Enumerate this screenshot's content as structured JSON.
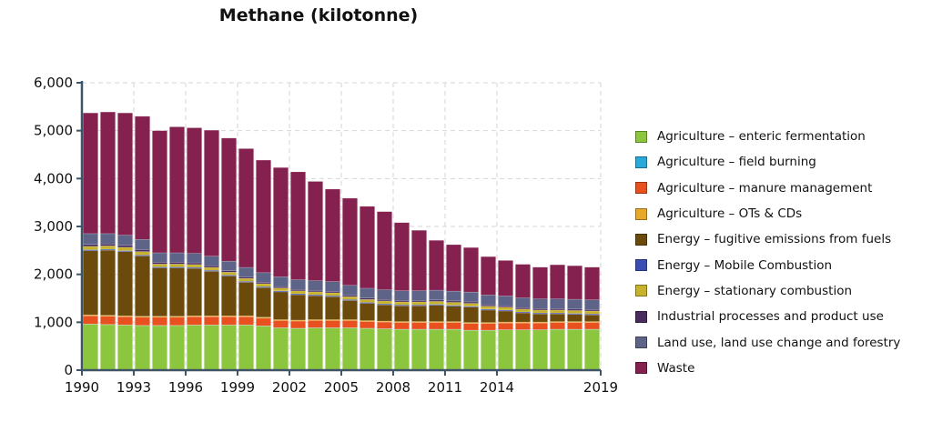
{
  "chart_data": {
    "type": "bar",
    "stacked": true,
    "title": "Methane (kilotonne)",
    "xlabel": "",
    "ylabel": "",
    "ylim": [
      0,
      6000
    ],
    "yticks": [
      "0",
      "1,000",
      "2,000",
      "3,000",
      "4,000",
      "5,000",
      "6,000"
    ],
    "xtick_labels": [
      {
        "year": "1990",
        "label": "1990"
      },
      {
        "year": "1993",
        "label": "1993"
      },
      {
        "year": "1996",
        "label": "1996"
      },
      {
        "year": "1999",
        "label": "1999"
      },
      {
        "year": "2002",
        "label": "2002"
      },
      {
        "year": "2005",
        "label": "2005"
      },
      {
        "year": "2008",
        "label": "2008"
      },
      {
        "year": "2011",
        "label": "2011"
      },
      {
        "year": "2014",
        "label": "2014"
      },
      {
        "year": "2019",
        "label": "2019"
      }
    ],
    "grid": true,
    "legend_position": "right",
    "categories": [
      "1990",
      "1991",
      "1992",
      "1993",
      "1994",
      "1995",
      "1996",
      "1997",
      "1998",
      "1999",
      "2000",
      "2001",
      "2002",
      "2003",
      "2004",
      "2005",
      "2006",
      "2007",
      "2008",
      "2009",
      "2010",
      "2011",
      "2012",
      "2013",
      "2014",
      "2015",
      "2016",
      "2017",
      "2018",
      "2019"
    ],
    "series": [
      {
        "name": "Agriculture – enteric fermentation",
        "color": "#8cc63f",
        "values": [
          960,
          950,
          940,
          930,
          930,
          930,
          940,
          940,
          940,
          940,
          920,
          880,
          870,
          880,
          880,
          880,
          870,
          860,
          850,
          850,
          850,
          850,
          830,
          830,
          840,
          840,
          840,
          850,
          850,
          850
        ]
      },
      {
        "name": "Agriculture – field burning",
        "color": "#29a9d9",
        "values": [
          5,
          5,
          5,
          5,
          5,
          5,
          5,
          5,
          5,
          5,
          5,
          5,
          5,
          5,
          5,
          5,
          5,
          5,
          5,
          5,
          5,
          5,
          5,
          5,
          5,
          5,
          5,
          5,
          5,
          5
        ]
      },
      {
        "name": "Agriculture – manure management",
        "color": "#e8501f",
        "values": [
          170,
          170,
          170,
          170,
          170,
          170,
          170,
          170,
          170,
          170,
          160,
          150,
          150,
          150,
          150,
          150,
          140,
          140,
          140,
          140,
          140,
          140,
          140,
          140,
          140,
          140,
          140,
          140,
          140,
          140
        ]
      },
      {
        "name": "Agriculture – OTs & CDs",
        "color": "#e8a92a",
        "values": [
          20,
          20,
          20,
          20,
          20,
          20,
          20,
          20,
          20,
          20,
          20,
          20,
          20,
          20,
          20,
          20,
          20,
          20,
          20,
          20,
          20,
          20,
          20,
          20,
          20,
          20,
          20,
          20,
          20,
          20
        ]
      },
      {
        "name": "Energy – fugitive emissions from fuels",
        "color": "#6b4a0c",
        "values": [
          1340,
          1360,
          1340,
          1260,
          1010,
          1010,
          990,
          930,
          830,
          700,
          620,
          580,
          530,
          500,
          480,
          400,
          360,
          340,
          330,
          330,
          340,
          320,
          320,
          260,
          230,
          190,
          170,
          160,
          150,
          140
        ]
      },
      {
        "name": "Energy – Mobile Combustion",
        "color": "#3a4db3",
        "values": [
          20,
          20,
          20,
          20,
          20,
          20,
          20,
          20,
          20,
          20,
          20,
          20,
          20,
          20,
          20,
          20,
          20,
          20,
          20,
          20,
          20,
          20,
          20,
          20,
          20,
          20,
          20,
          20,
          20,
          20
        ]
      },
      {
        "name": "Energy – stationary combustion",
        "color": "#c7b32b",
        "values": [
          70,
          70,
          70,
          70,
          60,
          60,
          60,
          60,
          60,
          60,
          60,
          60,
          60,
          60,
          60,
          60,
          60,
          60,
          60,
          60,
          60,
          60,
          60,
          60,
          60,
          60,
          60,
          60,
          60,
          60
        ]
      },
      {
        "name": "Industrial processes and product use",
        "color": "#4a2b5e",
        "values": [
          40,
          40,
          40,
          40,
          35,
          35,
          35,
          35,
          30,
          30,
          30,
          30,
          30,
          30,
          30,
          30,
          30,
          30,
          30,
          30,
          30,
          30,
          30,
          30,
          30,
          30,
          30,
          30,
          30,
          30
        ]
      },
      {
        "name": "Land use, land use change and forestry",
        "color": "#5d6488",
        "values": [
          225,
          215,
          215,
          215,
          200,
          200,
          200,
          200,
          200,
          200,
          200,
          205,
          205,
          205,
          205,
          205,
          205,
          205,
          205,
          205,
          205,
          205,
          205,
          205,
          205,
          205,
          205,
          205,
          205,
          205
        ]
      },
      {
        "name": "Waste",
        "color": "#84214f",
        "values": [
          2520,
          2540,
          2550,
          2570,
          2550,
          2630,
          2620,
          2630,
          2570,
          2480,
          2350,
          2280,
          2250,
          2070,
          1930,
          1820,
          1710,
          1630,
          1420,
          1260,
          1040,
          970,
          930,
          800,
          740,
          700,
          660,
          710,
          700,
          680
        ]
      }
    ]
  }
}
